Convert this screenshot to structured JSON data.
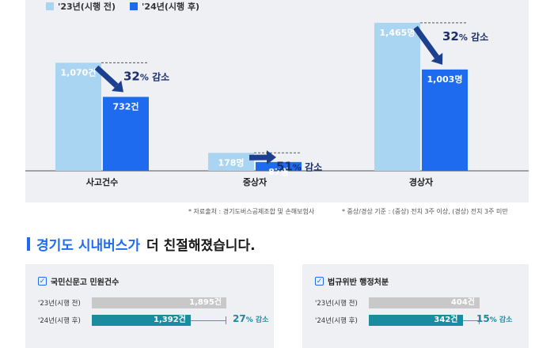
{
  "legend": [
    {
      "label": "'23년(시행 전)",
      "color": "#a9d5f2"
    },
    {
      "label": "'24년(시행 후)",
      "color": "#1f6bf0"
    }
  ],
  "chart_data": [
    {
      "type": "bar",
      "categories": [
        "사고건수",
        "중상자",
        "경상자"
      ],
      "series": [
        {
          "name": "'23년(시행 전)",
          "values": [
            1070,
            178,
            1465
          ],
          "labels": [
            "1,070건",
            "178명",
            "1,465명"
          ]
        },
        {
          "name": "'24년(시행 후)",
          "values": [
            732,
            87,
            1003
          ],
          "labels": [
            "732건",
            "87명",
            "1,003명"
          ]
        }
      ],
      "reductions": [
        "32% 감소",
        "51% 감소",
        "32% 감소"
      ],
      "ylim": [
        0,
        1550
      ],
      "grid": false,
      "legend_position": "top-left"
    },
    {
      "type": "bar",
      "orientation": "horizontal",
      "title": "국민신문고 민원건수",
      "categories": [
        "'23년(시행 전)",
        "'24년(시행 후)"
      ],
      "values": [
        1895,
        1392
      ],
      "labels": [
        "1,895건",
        "1,392건"
      ],
      "reduction": "27% 감소"
    },
    {
      "type": "bar",
      "orientation": "horizontal",
      "title": "법규위반 행정처분",
      "categories": [
        "'23년(시행 전)",
        "'24년(시행 후)"
      ],
      "values": [
        404,
        342
      ],
      "labels": [
        "404건",
        "342건"
      ],
      "reduction": "15% 감소"
    }
  ],
  "notes": {
    "source": "* 자료출처 : 경기도버스공제조합 및 손해보험사",
    "criteria": "* 중상/경상 기준 : (중상) 전치 3주 이상, (경상) 전치 3주 미만"
  },
  "section": {
    "title_part1": "경기도 시내버스가",
    "title_part2": "더 친절해졌습니다."
  },
  "colors": {
    "light": "#a9d5f2",
    "dark": "#1f6bf0",
    "gray": "#c8c8c8",
    "teal": "#1b8ba0"
  }
}
